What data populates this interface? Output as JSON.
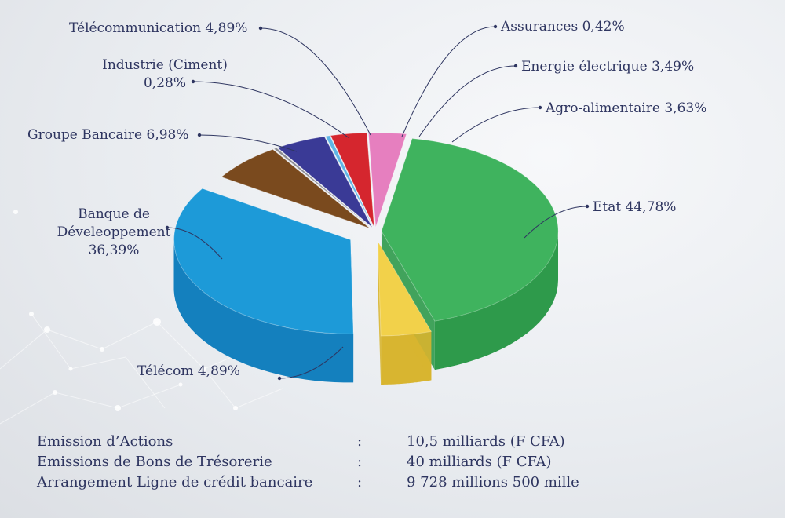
{
  "chart_data": {
    "type": "pie",
    "title": "",
    "slices": [
      {
        "label": "Etat",
        "value": 44.78,
        "display": "Etat 44,78%",
        "color": "#3fb35e",
        "side": "#2e9a4b"
      },
      {
        "label": "Télécom",
        "value": 4.89,
        "display": "Télécom 4,89%",
        "color": "#f2d14a",
        "side": "#d8b530"
      },
      {
        "label": "Banque de Déveleoppement",
        "value": 36.39,
        "display_lines": [
          "Banque de",
          "Déveleoppement",
          "36,39%"
        ],
        "color": "#1d9ad8",
        "side": "#1480be"
      },
      {
        "label": "Groupe Bancaire",
        "value": 6.98,
        "display": "Groupe Bancaire 6,98%",
        "color": "#7a4a1e",
        "side": "#5e3814"
      },
      {
        "label": "Industrie (Ciment)",
        "value": 0.28,
        "display_lines": [
          "Industrie (Ciment)",
          "0,28%"
        ],
        "color": "#8a8a90",
        "side": "#6d6d73"
      },
      {
        "label": "Télécommunication",
        "value": 4.89,
        "display": "Télécommunication 4,89%",
        "color": "#3a3a96",
        "side": "#2b2b78"
      },
      {
        "label": "Assurances",
        "value": 0.42,
        "display": "Assurances 0,42%",
        "color": "#5fb6e6",
        "side": "#3f98c8"
      },
      {
        "label": "Energie électrique",
        "value": 3.49,
        "display": "Energie électrique 3,49%",
        "color": "#d5262e",
        "side": "#a81a20"
      },
      {
        "label": "Agro-alimentaire",
        "value": 3.63,
        "display": "Agro-alimentaire 3,63%",
        "color": "#e67fbf",
        "side": "#c9609f"
      }
    ]
  },
  "info": [
    {
      "label": "Emission d’Actions",
      "sep": ":",
      "value": "10,5 milliards (F CFA)"
    },
    {
      "label": "Emissions de Bons de Trésorerie",
      "sep": ":",
      "value": "40 milliards (F CFA)"
    },
    {
      "label": "Arrangement Ligne de crédit bancaire",
      "sep": ":",
      "value": "9 728 millions 500 mille"
    }
  ]
}
